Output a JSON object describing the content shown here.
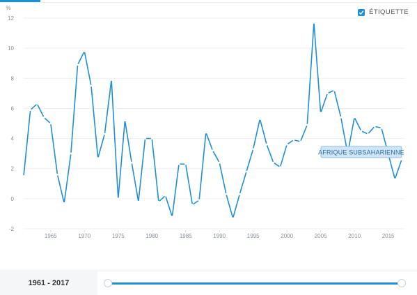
{
  "header": {
    "legend_toggle_label": "ÉTIQUETTE",
    "legend_checked": true
  },
  "chart_data": {
    "type": "line",
    "ylabel": "%",
    "ylim": [
      -2,
      12
    ],
    "y_ticks": [
      12,
      10,
      8,
      6,
      4,
      2,
      0,
      -2
    ],
    "xlim": [
      1961,
      2017
    ],
    "x_ticks": [
      1965,
      1970,
      1975,
      1980,
      1985,
      1990,
      1995,
      2000,
      2005,
      2010,
      2015
    ],
    "grid": true,
    "series": [
      {
        "name": "AFRIQUE SUBSAHARIENNE",
        "color": "#1f8fd6",
        "x": [
          1961,
          1962,
          1963,
          1964,
          1965,
          1966,
          1967,
          1968,
          1969,
          1970,
          1971,
          1972,
          1973,
          1974,
          1975,
          1976,
          1977,
          1978,
          1979,
          1980,
          1981,
          1982,
          1983,
          1984,
          1985,
          1986,
          1987,
          1988,
          1989,
          1990,
          1991,
          1992,
          1993,
          1994,
          1995,
          1996,
          1997,
          1998,
          1999,
          2000,
          2001,
          2002,
          2003,
          2004,
          2005,
          2006,
          2007,
          2008,
          2009,
          2010,
          2011,
          2012,
          2013,
          2014,
          2015,
          2016,
          2017
        ],
        "values": [
          1.5,
          5.9,
          6.3,
          5.4,
          5.0,
          1.6,
          -0.3,
          3.0,
          8.9,
          9.8,
          7.5,
          2.7,
          4.3,
          7.9,
          0.0,
          5.2,
          2.4,
          -0.2,
          4.0,
          4.0,
          -0.2,
          0.2,
          -1.2,
          2.3,
          2.3,
          -0.4,
          -0.1,
          4.4,
          3.2,
          2.4,
          0.3,
          -1.3,
          0.3,
          1.8,
          3.3,
          5.3,
          3.6,
          2.4,
          2.1,
          3.6,
          3.9,
          3.8,
          4.9,
          11.7,
          5.7,
          7.0,
          7.2,
          5.4,
          3.0,
          5.4,
          4.5,
          4.3,
          4.8,
          4.7,
          3.0,
          1.3,
          2.6
        ]
      }
    ]
  },
  "footer": {
    "range_label": "1961 - 2017"
  }
}
